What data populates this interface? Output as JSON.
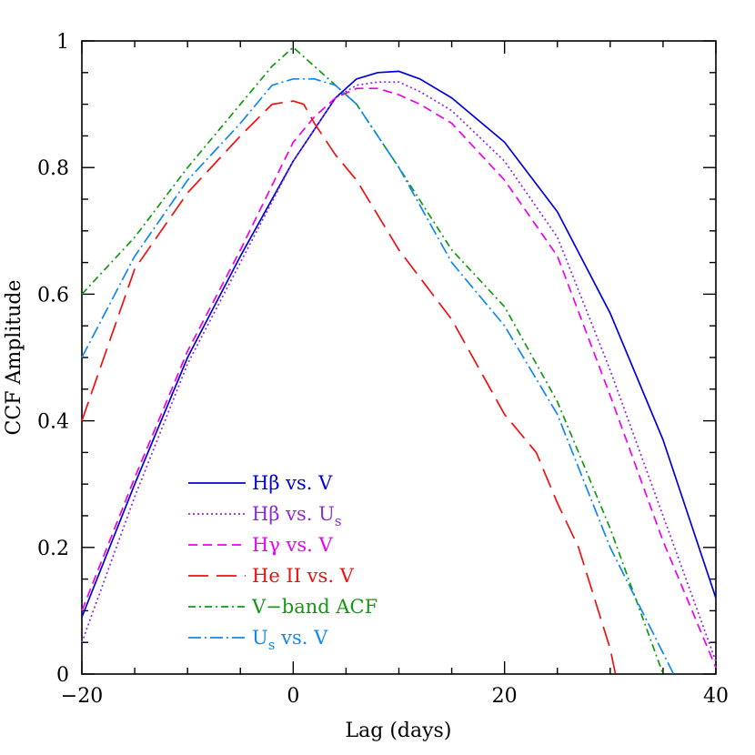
{
  "chart_data": {
    "type": "line",
    "xlabel": "Lag (days)",
    "ylabel": "CCF Amplitude",
    "xlim": [
      -20,
      40
    ],
    "ylim": [
      0,
      1
    ],
    "x_ticks": [
      "−20",
      "0",
      "20",
      "40"
    ],
    "y_ticks": [
      "0",
      "0.2",
      "0.4",
      "0.6",
      "0.8",
      "1"
    ],
    "x_tick_values": [
      -20,
      0,
      20,
      40
    ],
    "y_tick_values": [
      0,
      0.2,
      0.4,
      0.6,
      0.8,
      1
    ],
    "grid": false,
    "legend_position": "bottom-left",
    "series": [
      {
        "name": "Hβ vs. V",
        "legend": {
          "main": "Hβ vs. V",
          "sub": ""
        },
        "color": "#0000dd",
        "dash": "",
        "x": [
          -20,
          -15,
          -10,
          -5,
          0,
          2,
          4,
          6,
          8,
          10,
          12,
          15,
          20,
          25,
          30,
          35,
          40
        ],
        "y": [
          0.09,
          0.3,
          0.5,
          0.66,
          0.81,
          0.86,
          0.91,
          0.94,
          0.95,
          0.952,
          0.94,
          0.91,
          0.84,
          0.73,
          0.57,
          0.37,
          0.12
        ]
      },
      {
        "name": "Hβ vs. Us",
        "legend": {
          "main": "Hβ vs. U",
          "sub": "s"
        },
        "color": "#8a2be2",
        "dash": "2,3",
        "x": [
          -20,
          -15,
          -10,
          -5,
          0,
          2,
          4,
          6,
          8,
          10,
          12,
          15,
          20,
          25,
          30,
          35,
          40
        ],
        "y": [
          0.05,
          0.28,
          0.49,
          0.65,
          0.81,
          0.86,
          0.91,
          0.93,
          0.935,
          0.935,
          0.92,
          0.89,
          0.81,
          0.69,
          0.48,
          0.25,
          0.02
        ]
      },
      {
        "name": "Hγ vs. V",
        "legend": {
          "main": "Hγ vs. V",
          "sub": ""
        },
        "color": "#ee00ee",
        "dash": "10,6",
        "x": [
          -20,
          -15,
          -10,
          -5,
          0,
          2,
          4,
          6,
          8,
          10,
          12,
          15,
          20,
          25,
          30,
          35,
          40
        ],
        "y": [
          0.1,
          0.31,
          0.51,
          0.67,
          0.84,
          0.88,
          0.91,
          0.925,
          0.925,
          0.915,
          0.9,
          0.87,
          0.78,
          0.66,
          0.44,
          0.21,
          0.01
        ]
      },
      {
        "name": "He II vs. V",
        "legend": {
          "main": "He II vs. V",
          "sub": ""
        },
        "color": "#ee1111",
        "dash": "22,9",
        "x": [
          -20,
          -15,
          -10,
          -5,
          -2,
          0,
          1,
          2,
          4,
          6,
          10,
          15,
          20,
          23,
          25,
          27,
          30,
          30.5
        ],
        "y": [
          0.4,
          0.64,
          0.76,
          0.85,
          0.9,
          0.905,
          0.9,
          0.87,
          0.82,
          0.78,
          0.67,
          0.56,
          0.41,
          0.35,
          0.27,
          0.2,
          0.04,
          0
        ]
      },
      {
        "name": "V-band ACF",
        "legend": {
          "main": "V−band ACF",
          "sub": ""
        },
        "color": "#119911",
        "dash": "8,4,2,4",
        "x": [
          -20,
          -15,
          -10,
          -5,
          -2,
          0,
          2,
          4,
          6,
          10,
          15,
          20,
          25,
          30,
          35
        ],
        "y": [
          0.6,
          0.69,
          0.8,
          0.9,
          0.96,
          0.99,
          0.96,
          0.93,
          0.9,
          0.8,
          0.67,
          0.58,
          0.43,
          0.23,
          0
        ]
      },
      {
        "name": "Us vs. V",
        "legend": {
          "main": "U",
          "sub": "s",
          "tail": " vs. V"
        },
        "color": "#1188ee",
        "dash": "14,4,2,4",
        "x": [
          -20,
          -15,
          -10,
          -5,
          -2,
          0,
          2,
          4,
          6,
          10,
          15,
          20,
          25,
          30,
          36
        ],
        "y": [
          0.5,
          0.66,
          0.78,
          0.87,
          0.93,
          0.94,
          0.94,
          0.93,
          0.9,
          0.8,
          0.65,
          0.55,
          0.41,
          0.2,
          0
        ]
      }
    ]
  }
}
